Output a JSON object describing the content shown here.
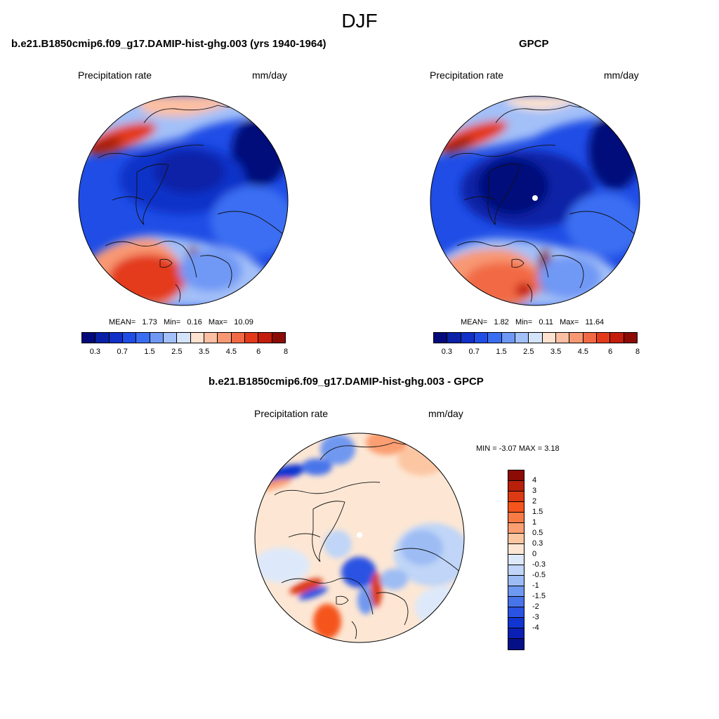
{
  "main_title": "DJF",
  "panels": [
    {
      "title": "b.e21.B1850cmip6.f09_g17.DAMIP-hist-ghg.003 (yrs 1940-1964)",
      "left_label": "Precipitation rate",
      "right_label": "mm/day",
      "stats": {
        "mean_label": "MEAN=",
        "mean": "1.73",
        "min_label": "Min=",
        "min": "0.16",
        "max_label": "Max=",
        "max": "10.09"
      }
    },
    {
      "title": "GPCP",
      "left_label": "Precipitation rate",
      "right_label": "mm/day",
      "stats": {
        "mean_label": "MEAN=",
        "mean": "1.82",
        "min_label": "Min=",
        "min": "0.11",
        "max_label": "Max=",
        "max": "11.64"
      }
    },
    {
      "title": "b.e21.B1850cmip6.f09_g17.DAMIP-hist-ghg.003 - GPCP",
      "left_label": "Precipitation rate",
      "right_label": "mm/day",
      "range_text": "MIN =  -3.07 MAX =   3.18"
    }
  ],
  "colorbar_abs": {
    "colors": [
      "#050a7a",
      "#0a20a6",
      "#1030c8",
      "#1f4de6",
      "#3a6ef2",
      "#6f98f5",
      "#a3c0f8",
      "#d4e4fb",
      "#fde2cf",
      "#fcbfa3",
      "#f89873",
      "#f16a45",
      "#e33a1c",
      "#c31e0d",
      "#8c0b05"
    ],
    "tick_labels": [
      "0.3",
      "0.7",
      "1.5",
      "2.5",
      "3.5",
      "4.5",
      "6",
      "8"
    ]
  },
  "colorbar_diff": {
    "colors": [
      "#8c0b05",
      "#b8200a",
      "#dc3a14",
      "#f5541c",
      "#f87b46",
      "#fb9e72",
      "#fcc6a3",
      "#fde7d4",
      "#dde9fa",
      "#c0d5f7",
      "#9dbcf4",
      "#6f98f0",
      "#4874ea",
      "#2a52e3",
      "#1035d0",
      "#0a1fb3",
      "#051088"
    ],
    "tick_labels": [
      "4",
      "3",
      "2",
      "1.5",
      "1",
      "0.5",
      "0.3",
      "0",
      "-0.3",
      "-0.5",
      "-1",
      "-1.5",
      "-2",
      "-3",
      "-4"
    ]
  }
}
